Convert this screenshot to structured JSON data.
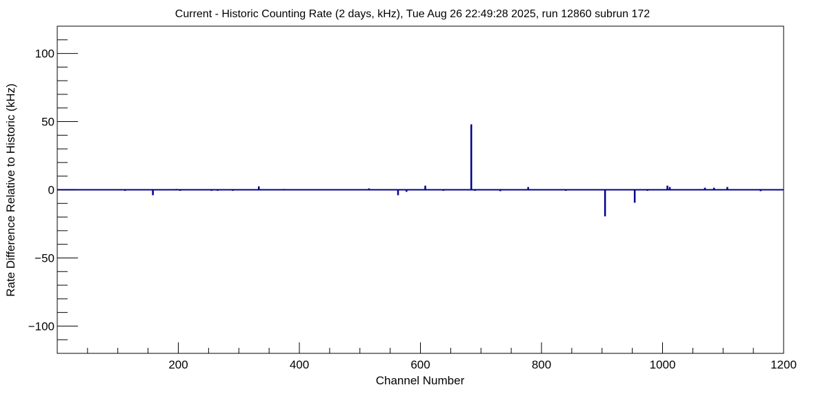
{
  "chart_data": {
    "type": "bar",
    "title": "Current - Historic Counting Rate (2 days, kHz), Tue Aug 26 22:49:28 2025, run 12860 subrun 172",
    "xlabel": "Channel Number",
    "ylabel": "Rate Difference Relative to Historic (kHz)",
    "xlim": [
      0,
      1200
    ],
    "ylim": [
      -120,
      120
    ],
    "x_ticks": [
      200,
      400,
      600,
      800,
      1000,
      1200
    ],
    "y_ticks": [
      -100,
      -50,
      0,
      50,
      100
    ],
    "grid": false,
    "legend": "none",
    "colors": {
      "series": "#00008b",
      "axis": "#000000"
    },
    "series": [
      {
        "x": [
          30,
          112,
          158,
          197,
          203,
          255,
          265,
          290,
          333,
          375,
          406,
          515,
          563,
          577,
          608,
          638,
          657,
          684,
          690,
          732,
          778,
          814,
          840,
          905,
          954,
          975,
          1008,
          1012,
          1070,
          1085,
          1107,
          1162
        ],
        "values": [
          0.5,
          -0.8,
          -4,
          0.6,
          -0.6,
          -0.7,
          -0.5,
          -0.5,
          2.5,
          0.6,
          0.5,
          1,
          -4,
          -1.5,
          3,
          -0.5,
          0.5,
          48,
          -0.6,
          -1,
          2,
          0.5,
          -0.5,
          -19.5,
          -9.5,
          -0.5,
          3,
          2,
          1.5,
          1.5,
          2,
          -1
        ]
      }
    ]
  }
}
